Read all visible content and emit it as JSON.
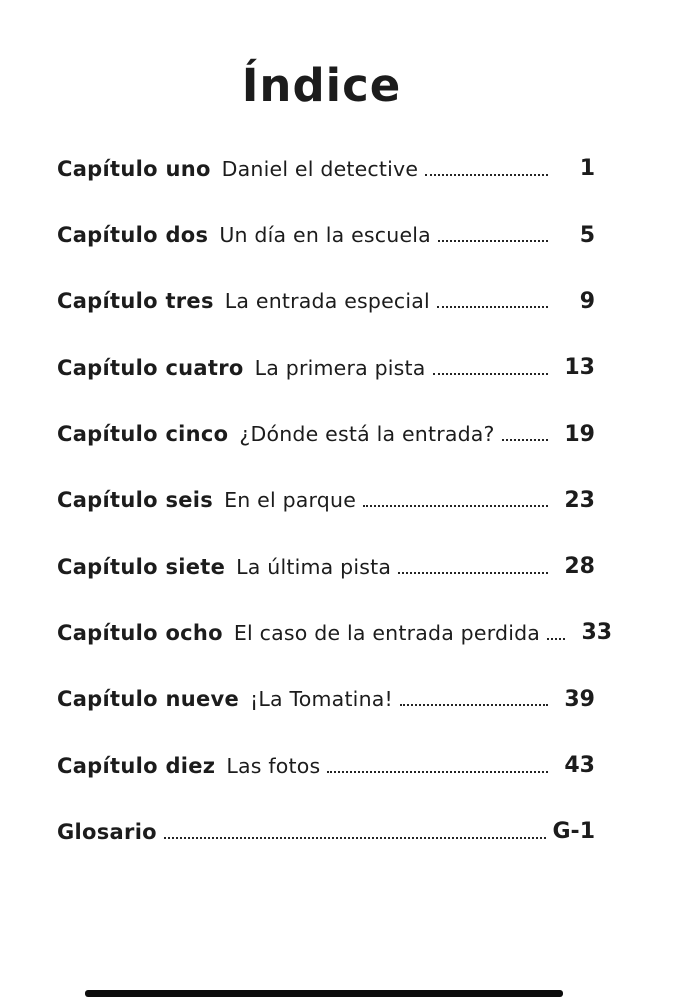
{
  "page": {
    "title": "Índice",
    "ink_color": "#1c1c1c",
    "paper_color": "#ffffff"
  },
  "toc": {
    "entries": [
      {
        "chapter": "Capítulo uno",
        "subtitle": "Daniel el detective",
        "page": "1"
      },
      {
        "chapter": "Capítulo dos",
        "subtitle": "Un día en la escuela",
        "page": "5"
      },
      {
        "chapter": "Capítulo tres",
        "subtitle": "La entrada especial",
        "page": "9"
      },
      {
        "chapter": "Capítulo cuatro",
        "subtitle": "La primera pista",
        "page": "13"
      },
      {
        "chapter": "Capítulo cinco",
        "subtitle": "¿Dónde está la entrada?",
        "page": "19"
      },
      {
        "chapter": "Capítulo seis",
        "subtitle": "En el parque",
        "page": "23"
      },
      {
        "chapter": "Capítulo siete",
        "subtitle": "La última pista",
        "page": "28"
      },
      {
        "chapter": "Capítulo ocho",
        "subtitle": "El caso de la entrada perdida",
        "page": "33"
      },
      {
        "chapter": "Capítulo nueve",
        "subtitle": "¡La Tomatina!",
        "page": "39"
      },
      {
        "chapter": "Capítulo diez",
        "subtitle": "Las fotos",
        "page": "43"
      }
    ],
    "glossary": {
      "label": "Glosario",
      "page": "G-1"
    }
  }
}
